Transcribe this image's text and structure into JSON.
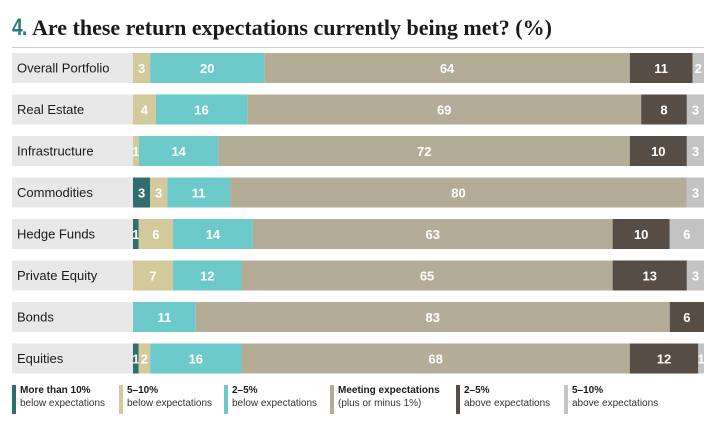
{
  "header": {
    "number": "4.",
    "title": "Are these return expectations currently being met? (%)"
  },
  "legend": [
    {
      "line1": "More than 10%",
      "line2": "below expectations",
      "color": "#2e6e6e"
    },
    {
      "line1": "5–10%",
      "line2": "below expectations",
      "color": "#d4c99a"
    },
    {
      "line1": "2–5%",
      "line2": "below expectations",
      "color": "#6dcaca"
    },
    {
      "line1": "Meeting expectations",
      "line2": "(plus or minus 1%)",
      "color": "#b5ac98"
    },
    {
      "line1": "2–5%",
      "line2": "above expectations",
      "color": "#574d44"
    },
    {
      "line1": "5–10%",
      "line2": "above expectations",
      "color": "#c3c3c3"
    }
  ],
  "chart_data": {
    "type": "bar",
    "orientation": "horizontal",
    "stacked": true,
    "title": "Are these return expectations currently being met? (%)",
    "categories": [
      "Overall Portfolio",
      "Real Estate",
      "Infrastructure",
      "Commodities",
      "Hedge Funds",
      "Private Equity",
      "Bonds",
      "Equities"
    ],
    "series": [
      {
        "name": "More than 10% below expectations",
        "color": "#2e6e6e",
        "values": [
          0,
          0,
          0,
          3,
          1,
          0,
          0,
          1
        ]
      },
      {
        "name": "5–10% below expectations",
        "color": "#d4c99a",
        "values": [
          3,
          4,
          1,
          3,
          6,
          7,
          0,
          2
        ]
      },
      {
        "name": "2–5% below expectations",
        "color": "#6dcaca",
        "values": [
          20,
          16,
          14,
          11,
          14,
          12,
          11,
          16
        ]
      },
      {
        "name": "Meeting expectations (plus or minus 1%)",
        "color": "#b5ac98",
        "values": [
          64,
          69,
          72,
          80,
          63,
          65,
          83,
          68
        ]
      },
      {
        "name": "2–5% above expectations",
        "color": "#574d44",
        "values": [
          11,
          8,
          10,
          0,
          10,
          13,
          6,
          12
        ]
      },
      {
        "name": "5–10% above expectations",
        "color": "#c3c3c3",
        "values": [
          2,
          3,
          3,
          3,
          6,
          3,
          0,
          1
        ]
      }
    ],
    "label_band_color": "#e8e8e8"
  }
}
